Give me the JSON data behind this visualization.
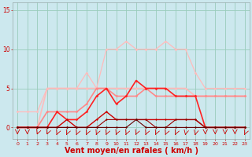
{
  "bg_color": "#cce8ee",
  "grid_color": "#99ccbb",
  "xlabel": "Vent moyen/en rafales ( km/h )",
  "xlabel_color": "#cc0000",
  "xlabel_fontsize": 7,
  "tick_color": "#cc0000",
  "ylim": [
    -1.5,
    16
  ],
  "xlim": [
    -0.5,
    23.5
  ],
  "yticks": [
    0,
    5,
    10,
    15
  ],
  "xticks": [
    0,
    1,
    2,
    3,
    4,
    5,
    6,
    7,
    8,
    9,
    10,
    11,
    12,
    13,
    14,
    15,
    16,
    17,
    18,
    19,
    20,
    21,
    22,
    23
  ],
  "lines": [
    {
      "x": [
        0,
        1,
        2,
        3,
        4,
        5,
        6,
        7,
        8,
        9,
        10,
        11,
        12,
        13,
        14,
        15,
        16,
        17,
        18,
        19,
        20,
        21,
        22,
        23
      ],
      "y": [
        2,
        2,
        2,
        5,
        5,
        5,
        5,
        7,
        5,
        10,
        10,
        11,
        10,
        10,
        10,
        11,
        10,
        10,
        7,
        5,
        5,
        5,
        5,
        5
      ],
      "color": "#ffbbbb",
      "lw": 0.9,
      "marker": "D",
      "ms": 1.8
    },
    {
      "x": [
        0,
        1,
        2,
        3,
        4,
        5,
        6,
        7,
        8,
        9,
        10,
        11,
        12,
        13,
        14,
        15,
        16,
        17,
        18,
        19,
        20,
        21,
        22,
        23
      ],
      "y": [
        0,
        0,
        0,
        5,
        5,
        5,
        5,
        5,
        5,
        5,
        5,
        5,
        5,
        5,
        5,
        5,
        5,
        5,
        4,
        4,
        4,
        4,
        4,
        4
      ],
      "color": "#ffbbbb",
      "lw": 1.2,
      "marker": "D",
      "ms": 1.8
    },
    {
      "x": [
        0,
        1,
        2,
        3,
        4,
        5,
        6,
        7,
        8,
        9,
        10,
        11,
        12,
        13,
        14,
        15,
        16,
        17,
        18,
        19,
        20,
        21,
        22,
        23
      ],
      "y": [
        0,
        0,
        0,
        2,
        2,
        2,
        2,
        3,
        5,
        5,
        4,
        4,
        4,
        5,
        4,
        4,
        4,
        4,
        4,
        4,
        4,
        4,
        4,
        4
      ],
      "color": "#ff8888",
      "lw": 1.2,
      "marker": "D",
      "ms": 1.8
    },
    {
      "x": [
        0,
        1,
        2,
        3,
        4,
        5,
        6,
        7,
        8,
        9,
        10,
        11,
        12,
        13,
        14,
        15,
        16,
        17,
        18,
        19,
        20,
        21,
        22,
        23
      ],
      "y": [
        0,
        0,
        0,
        0,
        2,
        1,
        1,
        2,
        4,
        5,
        3,
        4,
        6,
        5,
        5,
        5,
        4,
        4,
        4,
        0,
        0,
        0,
        0,
        0
      ],
      "color": "#ff2222",
      "lw": 1.2,
      "marker": "D",
      "ms": 1.8
    },
    {
      "x": [
        0,
        1,
        2,
        3,
        4,
        5,
        6,
        7,
        8,
        9,
        10,
        11,
        12,
        13,
        14,
        15,
        16,
        17,
        18,
        19,
        20,
        21,
        22,
        23
      ],
      "y": [
        0,
        0,
        0,
        0,
        0,
        1,
        0,
        0,
        1,
        2,
        1,
        1,
        1,
        1,
        1,
        1,
        1,
        1,
        1,
        0,
        0,
        0,
        0,
        0
      ],
      "color": "#cc0000",
      "lw": 1.0,
      "marker": "D",
      "ms": 1.5
    },
    {
      "x": [
        0,
        1,
        2,
        3,
        4,
        5,
        6,
        7,
        8,
        9,
        10,
        11,
        12,
        13,
        14,
        15,
        16,
        17,
        18,
        19,
        20,
        21,
        22,
        23
      ],
      "y": [
        0,
        0,
        0,
        0,
        0,
        0,
        0,
        0,
        0,
        1,
        1,
        1,
        1,
        1,
        0,
        0,
        1,
        1,
        1,
        0,
        0,
        0,
        0,
        0
      ],
      "color": "#990000",
      "lw": 0.8,
      "marker": "D",
      "ms": 1.5
    },
    {
      "x": [
        0,
        1,
        2,
        3,
        4,
        5,
        6,
        7,
        8,
        9,
        10,
        11,
        12,
        13,
        14,
        15,
        16,
        17,
        18,
        19,
        20,
        21,
        22,
        23
      ],
      "y": [
        0,
        0,
        0,
        0,
        0,
        0,
        0,
        0,
        0,
        0,
        0,
        0,
        1,
        0,
        0,
        0,
        0,
        0,
        0,
        0,
        0,
        0,
        0,
        0
      ],
      "color": "#660000",
      "lw": 0.8,
      "marker": "D",
      "ms": 1.5
    }
  ],
  "wind_arrows": {
    "y_data": -0.8,
    "color": "#cc0000",
    "angles": [
      180,
      180,
      225,
      225,
      270,
      270,
      270,
      270,
      270,
      270,
      270,
      270,
      270,
      270,
      270,
      270,
      270,
      315,
      315,
      180,
      180,
      180,
      180,
      270
    ]
  }
}
